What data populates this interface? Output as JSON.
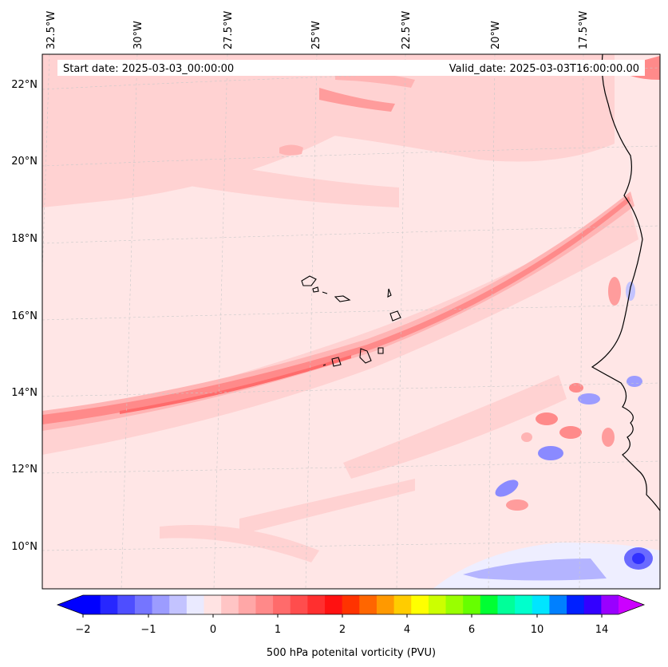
{
  "map": {
    "header_left": "Start date: 2025-03-03_00:00:00",
    "header_right": "Valid_date: 2025-03-03T16:00:00.00",
    "lon_labels": [
      "32.5°W",
      "30°W",
      "27.5°W",
      "25°W",
      "22.5°W",
      "20°W",
      "17.5°W"
    ],
    "lat_labels": [
      "22°N",
      "20°N",
      "18°N",
      "16°N",
      "14°N",
      "12°N",
      "10°N"
    ],
    "colorbar_ticks": [
      "−2",
      "−1",
      "0",
      "1",
      "2",
      "4",
      "6",
      "10",
      "14"
    ],
    "colorbar_label": "500 hPa potenital vorticity (PVU)",
    "colorbar_colors": [
      "#0000ff",
      "#2727ff",
      "#4e4eff",
      "#7575ff",
      "#9c9cff",
      "#c3c3ff",
      "#eaeaff",
      "#ffe3e3",
      "#ffc5c5",
      "#ffa7a7",
      "#ff8989",
      "#ff6b6b",
      "#ff4d4d",
      "#ff2f2f",
      "#ff1111",
      "#ff3300",
      "#ff6600",
      "#ff9900",
      "#ffcc00",
      "#ffff00",
      "#ccff00",
      "#99ff00",
      "#66ff00",
      "#00ff33",
      "#00ff99",
      "#00ffcc",
      "#00e5ff",
      "#0080ff",
      "#0020ff",
      "#3300ff",
      "#9900ff"
    ],
    "colorbar_extend_low": "#0000ff",
    "colorbar_extend_high": "#cc00ff"
  }
}
